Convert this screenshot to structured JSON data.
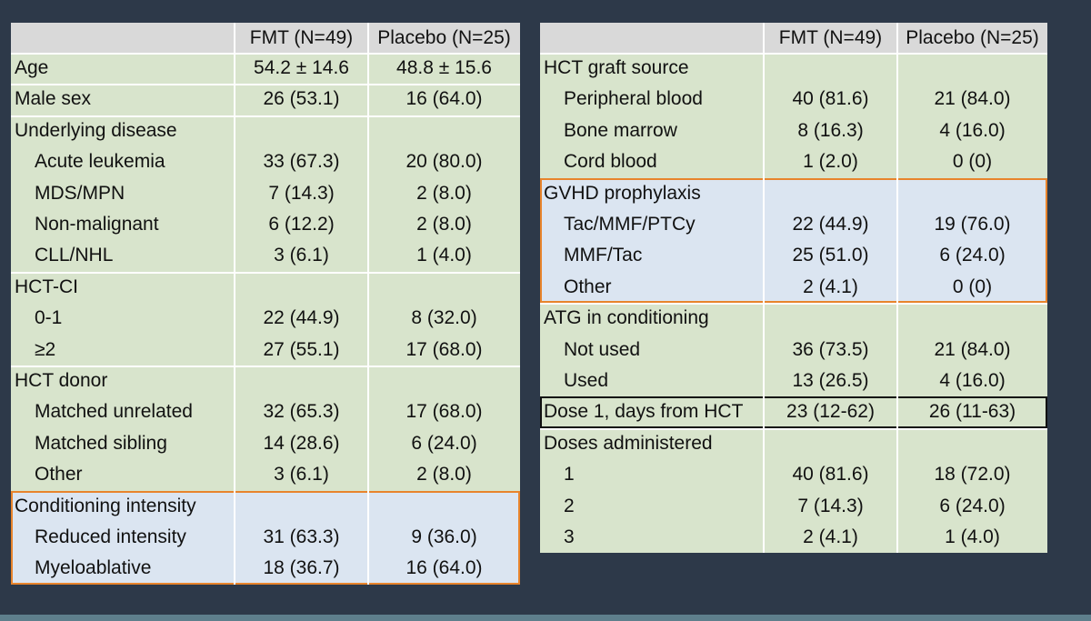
{
  "tables": [
    {
      "header": [
        "FMT (N=49)",
        "Placebo (N=25)"
      ],
      "groups": [
        {
          "title": "Age",
          "values": [
            "54.2 ± 14.6",
            "48.8 ± 15.6"
          ]
        },
        {
          "title": "Male sex",
          "values": [
            "26 (53.1)",
            "16 (64.0)"
          ]
        },
        {
          "title": "Underlying disease",
          "rows": [
            [
              "Acute leukemia",
              "33 (67.3)",
              "20 (80.0)"
            ],
            [
              "MDS/MPN",
              "7 (14.3)",
              "2 (8.0)"
            ],
            [
              "Non-malignant",
              "6 (12.2)",
              "2 (8.0)"
            ],
            [
              "CLL/NHL",
              "3 (6.1)",
              "1 (4.0)"
            ]
          ]
        },
        {
          "title": "HCT-CI",
          "rows": [
            [
              "0-1",
              "22 (44.9)",
              "8 (32.0)"
            ],
            [
              "≥2",
              "27 (55.1)",
              "17 (68.0)"
            ]
          ]
        },
        {
          "title": "HCT donor",
          "rows": [
            [
              "Matched unrelated",
              "32 (65.3)",
              "17 (68.0)"
            ],
            [
              "Matched sibling",
              "14 (28.6)",
              "6 (24.0)"
            ],
            [
              "Other",
              "3 (6.1)",
              "2 (8.0)"
            ]
          ]
        },
        {
          "title": "Conditioning intensity",
          "fill": "#dbe5f1",
          "border_color": "#e8842c",
          "rows": [
            [
              "Reduced intensity",
              "31 (63.3)",
              "9 (36.0)"
            ],
            [
              "Myeloablative",
              "18 (36.7)",
              "16 (64.0)"
            ]
          ]
        }
      ]
    },
    {
      "header": [
        "FMT (N=49)",
        "Placebo (N=25)"
      ],
      "groups": [
        {
          "title": "HCT graft source",
          "rows": [
            [
              "Peripheral blood",
              "40 (81.6)",
              "21 (84.0)"
            ],
            [
              "Bone marrow",
              "8 (16.3)",
              "4 (16.0)"
            ],
            [
              "Cord blood",
              "1 (2.0)",
              "0 (0)"
            ]
          ]
        },
        {
          "title": "GVHD prophylaxis",
          "fill": "#dbe5f1",
          "border_color": "#e8842c",
          "rows": [
            [
              "Tac/MMF/PTCy",
              "22 (44.9)",
              "19 (76.0)"
            ],
            [
              "MMF/Tac",
              "25 (51.0)",
              "6 (24.0)"
            ],
            [
              "Other",
              "2 (4.1)",
              "0 (0)"
            ]
          ]
        },
        {
          "title": "ATG in conditioning",
          "rows": [
            [
              "Not used",
              "36 (73.5)",
              "21 (84.0)"
            ],
            [
              "Used",
              "13 (26.5)",
              "4 (16.0)"
            ]
          ]
        },
        {
          "title": "Dose 1, days from HCT",
          "border_color": "#111111",
          "values": [
            "23 (12-62)",
            "26 (11-63)"
          ]
        },
        {
          "title": "Doses administered",
          "rows": [
            [
              "1",
              "40 (81.6)",
              "18 (72.0)"
            ],
            [
              "2",
              "7 (14.3)",
              "6 (24.0)"
            ],
            [
              "3",
              "2 (4.1)",
              "1 (4.0)"
            ]
          ]
        }
      ]
    }
  ]
}
